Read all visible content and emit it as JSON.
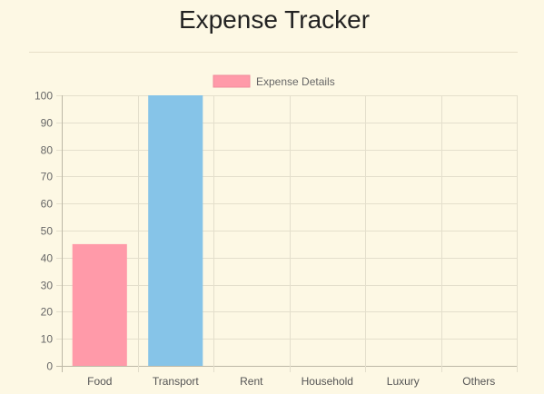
{
  "page": {
    "title": "Expense Tracker"
  },
  "chart_data": {
    "type": "bar",
    "categories": [
      "Food",
      "Transport",
      "Rent",
      "Household",
      "Luxury",
      "Others"
    ],
    "series": [
      {
        "name": "Expense Details",
        "values": [
          45,
          100,
          0,
          0,
          0,
          0
        ],
        "colors": [
          "#ff9aa9",
          "#86c4e8",
          "#ff9aa9",
          "#ff9aa9",
          "#ff9aa9",
          "#ff9aa9"
        ]
      }
    ],
    "ylim": [
      0,
      100
    ],
    "yticks": [
      0,
      10,
      20,
      30,
      40,
      50,
      60,
      70,
      80,
      90,
      100
    ],
    "grid": true,
    "legend_position": "top-center",
    "legend_swatch_color": "#ff9aa9",
    "background_color": "#fdf8e4"
  }
}
